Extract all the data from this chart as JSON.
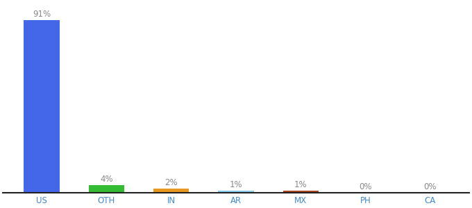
{
  "categories": [
    "US",
    "OTH",
    "IN",
    "AR",
    "MX",
    "PH",
    "CA"
  ],
  "values": [
    91,
    4,
    2,
    1,
    1,
    0,
    0
  ],
  "labels": [
    "91%",
    "4%",
    "2%",
    "1%",
    "1%",
    "0%",
    "0%"
  ],
  "bar_colors": [
    "#4466e8",
    "#33bb33",
    "#e89820",
    "#88ccee",
    "#aa4422",
    "#cccccc",
    "#cccccc"
  ],
  "ylim": [
    0,
    100
  ],
  "label_fontsize": 8.5,
  "tick_fontsize": 8.5,
  "bar_width": 0.55,
  "label_color": "#888888",
  "tick_color": "#4488cc",
  "bottom_line_color": "#222222"
}
